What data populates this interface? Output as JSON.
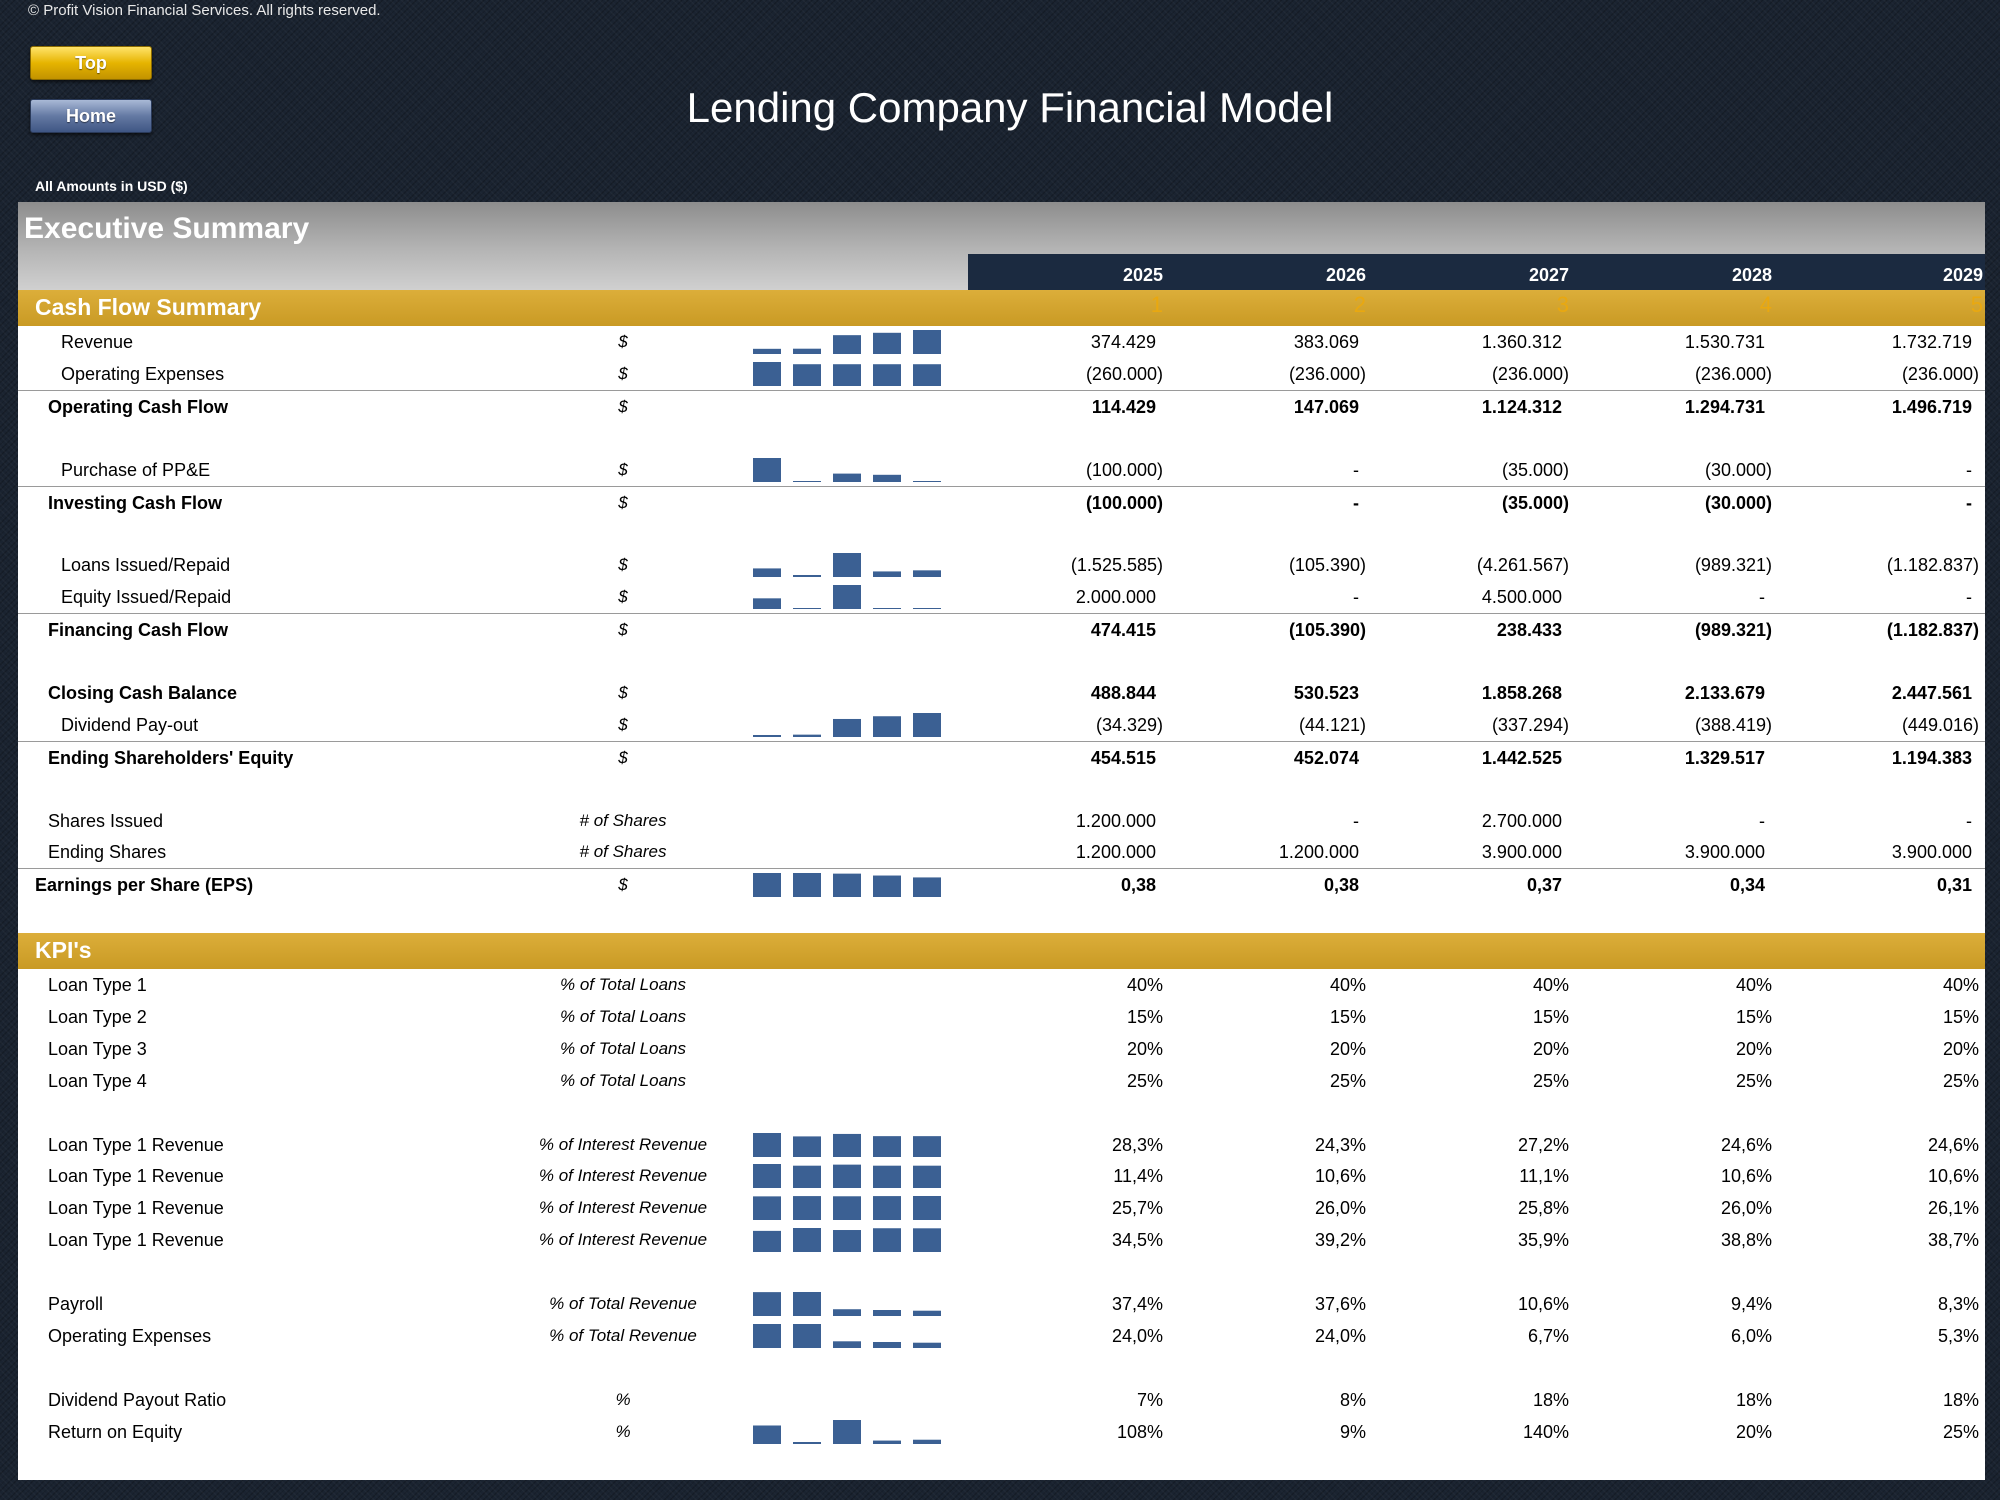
{
  "copyright": "© Profit Vision Financial Services. All rights reserved.",
  "buttons": {
    "top": "Top",
    "home": "Home"
  },
  "title": "Lending Company Financial Model",
  "amounts_label": "All Amounts in  USD ($)",
  "exec_title": "Executive Summary",
  "years": [
    "2025",
    "2026",
    "2027",
    "2028",
    "2029"
  ],
  "periods": [
    "1",
    "2",
    "3",
    "4",
    "5"
  ],
  "colors": {
    "gold": "#d4a52e",
    "navy": "#1b2a40",
    "spark_bar": "#3b6093"
  },
  "cash_flow": {
    "title": "Cash Flow Summary",
    "rows": [
      {
        "label": "Revenue",
        "unit": "$",
        "indent": 1,
        "bold": false,
        "border": false,
        "values": [
          "374.429",
          "383.069",
          "1.360.312",
          "1.530.731",
          "1.732.719"
        ],
        "spark": [
          374429,
          383069,
          1360312,
          1530731,
          1732719
        ]
      },
      {
        "label": "Operating Expenses",
        "unit": "$",
        "indent": 1,
        "bold": false,
        "border": false,
        "values": [
          "(260.000)",
          "(236.000)",
          "(236.000)",
          "(236.000)",
          "(236.000)"
        ],
        "spark": [
          260000,
          236000,
          236000,
          236000,
          236000
        ]
      },
      {
        "label": "Operating Cash Flow",
        "unit": "$",
        "indent": 2,
        "bold": true,
        "border": true,
        "values": [
          "114.429",
          "147.069",
          "1.124.312",
          "1.294.731",
          "1.496.719"
        ],
        "spark": null
      },
      {
        "spacer": true
      },
      {
        "label": "Purchase of PP&E",
        "unit": "$",
        "indent": 1,
        "bold": false,
        "border": false,
        "values": [
          "(100.000)",
          "-",
          "(35.000)",
          "(30.000)",
          "-"
        ],
        "spark": [
          100000,
          0,
          35000,
          30000,
          0
        ]
      },
      {
        "label": "Investing Cash Flow",
        "unit": "$",
        "indent": 2,
        "bold": true,
        "border": true,
        "values": [
          "(100.000)",
          "-",
          "(35.000)",
          "(30.000)",
          "-"
        ],
        "spark": null
      },
      {
        "spacer": true
      },
      {
        "label": "Loans Issued/Repaid",
        "unit": "$",
        "indent": 1,
        "bold": false,
        "border": false,
        "values": [
          "(1.525.585)",
          "(105.390)",
          "(4.261.567)",
          "(989.321)",
          "(1.182.837)"
        ],
        "spark": [
          -1525585,
          -105390,
          -4261567,
          -989321,
          -1182837
        ]
      },
      {
        "label": "Equity Issued/Repaid",
        "unit": "$",
        "indent": 1,
        "bold": false,
        "border": false,
        "values": [
          "2.000.000",
          "-",
          "4.500.000",
          "-",
          "-"
        ],
        "spark": [
          2000000,
          0,
          4500000,
          0,
          0
        ]
      },
      {
        "label": "Financing Cash Flow",
        "unit": "$",
        "indent": 2,
        "bold": true,
        "border": true,
        "values": [
          "474.415",
          "(105.390)",
          "238.433",
          "(989.321)",
          "(1.182.837)"
        ],
        "spark": null
      },
      {
        "spacer": true
      },
      {
        "label": "Closing Cash Balance",
        "unit": "$",
        "indent": 2,
        "bold": true,
        "border": false,
        "values": [
          "488.844",
          "530.523",
          "1.858.268",
          "2.133.679",
          "2.447.561"
        ],
        "spark": null
      },
      {
        "label": "Dividend Pay-out",
        "unit": "$",
        "indent": 1,
        "bold": false,
        "border": false,
        "values": [
          "(34.329)",
          "(44.121)",
          "(337.294)",
          "(388.419)",
          "(449.016)"
        ],
        "spark": [
          34329,
          44121,
          337294,
          388419,
          449016
        ]
      },
      {
        "label": "Ending Shareholders' Equity",
        "unit": "$",
        "indent": 2,
        "bold": true,
        "border": true,
        "values": [
          "454.515",
          "452.074",
          "1.442.525",
          "1.329.517",
          "1.194.383"
        ],
        "spark": null
      },
      {
        "spacer": true
      },
      {
        "label": "Shares Issued",
        "unit": "# of Shares",
        "indent": 2,
        "bold": false,
        "border": false,
        "values": [
          "1.200.000",
          "-",
          "2.700.000",
          "-",
          "-"
        ],
        "spark": null
      },
      {
        "label": "Ending Shares",
        "unit": "# of Shares",
        "indent": 2,
        "bold": false,
        "border": false,
        "values": [
          "1.200.000",
          "1.200.000",
          "3.900.000",
          "3.900.000",
          "3.900.000"
        ],
        "spark": null
      },
      {
        "label": "Earnings per Share (EPS)",
        "unit": "$",
        "indent": 3,
        "bold": true,
        "border": true,
        "values": [
          "0,38",
          "0,38",
          "0,37",
          "0,34",
          "0,31"
        ],
        "spark": [
          0.38,
          0.38,
          0.37,
          0.34,
          0.31
        ]
      }
    ]
  },
  "kpis": {
    "title": "KPI's",
    "rows": [
      {
        "label": "Loan Type 1",
        "unit": "% of Total Loans",
        "indent": 2,
        "bold": false,
        "border": false,
        "values": [
          "40%",
          "40%",
          "40%",
          "40%",
          "40%"
        ],
        "spark": null
      },
      {
        "label": "Loan Type 2",
        "unit": "% of Total Loans",
        "indent": 2,
        "bold": false,
        "border": false,
        "values": [
          "15%",
          "15%",
          "15%",
          "15%",
          "15%"
        ],
        "spark": null
      },
      {
        "label": "Loan Type 3",
        "unit": "% of Total Loans",
        "indent": 2,
        "bold": false,
        "border": false,
        "values": [
          "20%",
          "20%",
          "20%",
          "20%",
          "20%"
        ],
        "spark": null
      },
      {
        "label": "Loan Type 4",
        "unit": "% of Total Loans",
        "indent": 2,
        "bold": false,
        "border": false,
        "values": [
          "25%",
          "25%",
          "25%",
          "25%",
          "25%"
        ],
        "spark": null
      },
      {
        "spacer": true
      },
      {
        "label": "Loan Type 1 Revenue",
        "unit": "% of Interest Revenue",
        "indent": 2,
        "bold": false,
        "border": false,
        "values": [
          "28,3%",
          "24,3%",
          "27,2%",
          "24,6%",
          "24,6%"
        ],
        "spark": [
          28.3,
          24.3,
          27.2,
          24.6,
          24.6
        ]
      },
      {
        "label": "Loan Type 1 Revenue",
        "unit": "% of Interest Revenue",
        "indent": 2,
        "bold": false,
        "border": false,
        "values": [
          "11,4%",
          "10,6%",
          "11,1%",
          "10,6%",
          "10,6%"
        ],
        "spark": [
          11.4,
          10.6,
          11.1,
          10.6,
          10.6
        ]
      },
      {
        "label": "Loan Type 1 Revenue",
        "unit": "% of Interest Revenue",
        "indent": 2,
        "bold": false,
        "border": false,
        "values": [
          "25,7%",
          "26,0%",
          "25,8%",
          "26,0%",
          "26,1%"
        ],
        "spark": [
          25.7,
          26.0,
          25.8,
          26.0,
          26.1
        ]
      },
      {
        "label": "Loan Type 1 Revenue",
        "unit": "% of Interest Revenue",
        "indent": 2,
        "bold": false,
        "border": false,
        "values": [
          "34,5%",
          "39,2%",
          "35,9%",
          "38,8%",
          "38,7%"
        ],
        "spark": [
          34.5,
          39.2,
          35.9,
          38.8,
          38.7
        ]
      },
      {
        "spacer": true
      },
      {
        "label": "Payroll",
        "unit": "% of Total Revenue",
        "indent": 2,
        "bold": false,
        "border": false,
        "values": [
          "37,4%",
          "37,6%",
          "10,6%",
          "9,4%",
          "8,3%"
        ],
        "spark": [
          37.4,
          37.6,
          10.6,
          9.4,
          8.3
        ]
      },
      {
        "label": "Operating Expenses",
        "unit": "% of Total Revenue",
        "indent": 2,
        "bold": false,
        "border": false,
        "values": [
          "24,0%",
          "24,0%",
          "6,7%",
          "6,0%",
          "5,3%"
        ],
        "spark": [
          24.0,
          24.0,
          6.7,
          6.0,
          5.3
        ]
      },
      {
        "spacer": true
      },
      {
        "label": "Dividend Payout Ratio",
        "unit": "%",
        "indent": 2,
        "bold": false,
        "border": false,
        "values": [
          "7%",
          "8%",
          "18%",
          "18%",
          "18%"
        ],
        "spark": null
      },
      {
        "label": "Return on Equity",
        "unit": "%",
        "indent": 2,
        "bold": false,
        "border": false,
        "values": [
          "108%",
          "9%",
          "140%",
          "20%",
          "25%"
        ],
        "spark": [
          108,
          9,
          140,
          20,
          25
        ]
      }
    ]
  }
}
